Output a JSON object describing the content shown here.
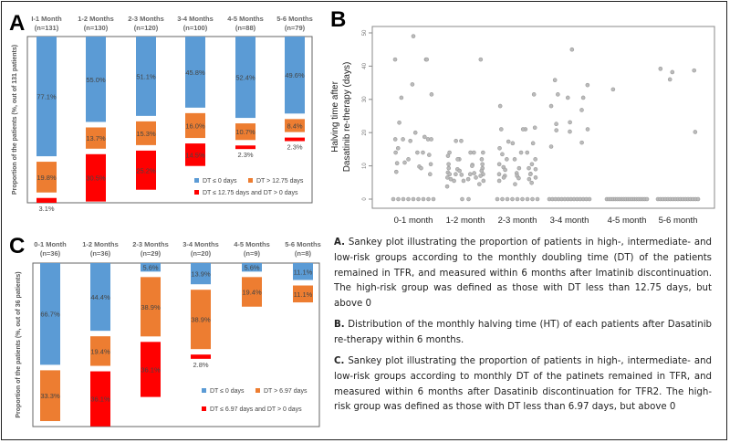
{
  "colors": {
    "low": "#5b9bd5",
    "intermediate": "#ed7d31",
    "high": "#ff0000",
    "label": "#444444",
    "point": "#999999"
  },
  "chart_data": [
    {
      "panel": "A",
      "type": "bar",
      "subtype": "stacked-with-gaps",
      "ylabel": "Proportion of the patients (%, out of 131 patients)",
      "categories": [
        "I-1 Month",
        "1-2 Months",
        "2-3 Months",
        "3-4 Months",
        "4-5 Months",
        "5-6 Months"
      ],
      "n_labels": [
        "(n=131)",
        "(n=130)",
        "(n=120)",
        "(n=100)",
        "(n=88)",
        "(n=79)"
      ],
      "series": [
        {
          "name": "DT ≤ 0 days",
          "color": "#5b9bd5",
          "values": [
            77.1,
            55.0,
            51.1,
            45.8,
            52.4,
            49.6
          ]
        },
        {
          "name": "DT > 12.75 days",
          "color": "#ed7d31",
          "values": [
            19.8,
            13.7,
            15.3,
            16.0,
            10.7,
            8.4
          ]
        },
        {
          "name": "DT ≤ 12.75 days and DT > 0 days",
          "color": "#ff0000",
          "values": [
            3.1,
            30.5,
            25.2,
            14.5,
            2.3,
            2.3
          ]
        }
      ],
      "data_labels": [
        [
          "77.1%",
          "55.0%",
          "51.1%",
          "45.8%",
          "52.4%",
          "49.6%"
        ],
        [
          "19.8%",
          "13.7%",
          "15.3%",
          "16.0%",
          "10.7%",
          "8.4%"
        ],
        [
          "3.1%",
          "30.5%",
          "25.2%",
          "14.5%",
          "2.3%",
          "2.3%"
        ]
      ],
      "ylim": [
        0,
        100
      ],
      "legend": "bottom-right"
    },
    {
      "panel": "B",
      "type": "scatter",
      "subtype": "strip",
      "ylabel_lines": [
        "Halving time after",
        "Dasatinib re-therapy (days)"
      ],
      "categories": [
        "0-1 month",
        "1-2 month",
        "2-3 month",
        "3-4 month",
        "4-5 month",
        "5-6 month"
      ],
      "yticks": [
        "0",
        "10",
        "20",
        "30",
        "40",
        "50"
      ],
      "ylim": [
        0,
        50
      ],
      "values": [
        [
          49,
          42,
          42,
          42,
          34.5,
          30.5,
          31.5,
          23,
          20,
          18.7,
          18,
          18,
          17.5,
          18,
          18,
          15.3,
          14,
          14,
          14,
          13.3,
          12,
          11,
          10.5,
          10.8,
          9.8,
          9.3,
          8.2,
          7.5,
          0,
          0,
          0,
          0,
          0,
          0,
          0,
          0,
          0
        ],
        [
          42,
          17.5,
          17.5,
          14,
          14,
          14,
          14,
          13,
          12,
          12,
          12,
          10.5,
          10.5,
          10.3,
          10,
          9.3,
          9.3,
          9,
          8.5,
          8.5,
          8,
          7.8,
          7.5,
          7.5,
          7.5,
          7.5,
          7.3,
          7,
          6.5,
          6.5,
          6,
          6,
          5.5,
          5.5,
          5.5,
          4.5,
          3.8,
          0,
          0
        ],
        [
          31.5,
          28,
          21,
          21,
          21,
          21.5,
          17.3,
          16.8,
          16.8,
          15.3,
          14,
          14,
          13.5,
          12,
          12,
          12,
          10.5,
          10.5,
          9.3,
          9.3,
          9.6,
          9,
          8.8,
          7.8,
          7.6,
          7.5,
          7.5,
          7,
          7,
          6.5,
          6.5,
          6.3,
          6,
          5.5,
          4.9,
          4.5,
          0,
          0,
          0,
          0,
          0,
          0,
          0,
          0,
          0
        ],
        [
          45,
          35.8,
          34.3,
          31.5,
          30.5,
          30.5,
          28,
          26.8,
          23.1,
          22.6,
          21,
          20.7,
          20.3,
          17,
          15.8,
          0,
          0,
          0,
          0,
          0,
          0,
          0,
          0,
          0,
          0,
          0,
          0,
          0,
          0
        ],
        [
          33,
          0,
          0,
          0,
          0,
          0,
          0,
          0,
          0,
          0,
          0,
          0,
          0,
          0,
          0,
          0,
          0,
          0,
          0,
          0,
          0
        ],
        [
          39.2,
          38.7,
          38.2,
          36,
          20.2,
          0,
          0,
          0,
          0,
          0,
          0,
          0,
          0,
          0,
          0,
          0,
          0,
          0,
          0,
          0,
          0,
          0
        ]
      ],
      "grid": false
    },
    {
      "panel": "C",
      "type": "bar",
      "subtype": "stacked-with-gaps",
      "ylabel": "Proportion of the patients (%, out of 36 patients)",
      "categories": [
        "0-1 Month",
        "1-2 Months",
        "2-3 Months",
        "3-4 Months",
        "4-5 Months",
        "5-6 Months"
      ],
      "n_labels": [
        "(n=36)",
        "(n=36)",
        "(n=29)",
        "(n=20)",
        "(n=9)",
        "(n=8)"
      ],
      "series": [
        {
          "name": "DT ≤ 0 days",
          "color": "#5b9bd5",
          "values": [
            66.7,
            44.4,
            5.6,
            13.9,
            5.6,
            11.1
          ]
        },
        {
          "name": "DT > 6.97 days",
          "color": "#ed7d31",
          "values": [
            33.3,
            19.4,
            38.9,
            38.9,
            19.4,
            11.1
          ]
        },
        {
          "name": "DT ≤ 6.97 days and DT > 0 days",
          "color": "#ff0000",
          "values": [
            0,
            36.1,
            36.1,
            2.8,
            0,
            0
          ]
        }
      ],
      "data_labels": [
        [
          "66.7%",
          "44.4%",
          "5.6%",
          "13.9%",
          "5.6%",
          "11.1%"
        ],
        [
          "33.3%",
          "19.4%",
          "38.9%",
          "38.9%",
          "19.4%",
          "11.1%"
        ],
        [
          "",
          "36.1%",
          "36.1%",
          "2.8%",
          "",
          ""
        ]
      ],
      "ylim": [
        0,
        100
      ],
      "legend": "bottom-right"
    }
  ],
  "panel_letters": {
    "a": "A",
    "b": "B",
    "c": "C"
  },
  "captions": {
    "a_label": "A.",
    "a_text": " Sankey plot illustrating the proportion of patients in high-, intermediate- and low-risk groups according to the monthly doubling time (DT) of the patients remained in TFR, and measured within 6 months after Imatinib discontinuation. The high-risk group was defined as those with DT less than 12.75 days, but above 0",
    "b_label": "B.",
    "b_text": " Distribution of the monthly halving time (HT) of each patients after Dasatinib re-therapy within 6 months.",
    "c_label": "C.",
    "c_text": " Sankey plot illustrating the proportion of patients in high-, intermediate- and low-risk groups according to monthly DT of the patinets remained in TFR, and measured within 6 months after Dasatinib discontinuation for TFR2. The high-risk group was defined as those with DT less than 6.97 days, but above 0"
  }
}
